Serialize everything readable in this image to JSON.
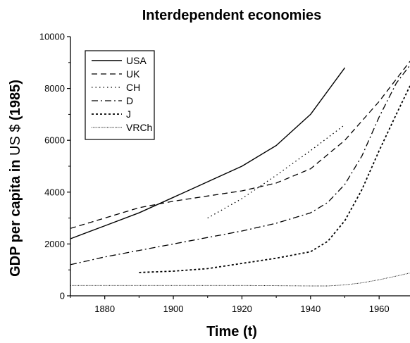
{
  "chart_data": {
    "type": "line",
    "title": "Interdependent economies",
    "xlabel": "Time (t)",
    "ylabel": "GDP per capita in US $ (1985)",
    "ylabel_parts": [
      "GDP per capita in ",
      "US $",
      " (1985)"
    ],
    "xlim": [
      1870,
      1969
    ],
    "ylim": [
      0,
      10000
    ],
    "xticks": [
      1880,
      1900,
      1920,
      1940,
      1960
    ],
    "yticks": [
      0,
      2000,
      4000,
      6000,
      8000,
      10000
    ],
    "grid": false,
    "legend_position": "top-left",
    "series": [
      {
        "name": "USA",
        "dash": "solid",
        "width": 1.4,
        "points": [
          [
            1870,
            2200
          ],
          [
            1880,
            2700
          ],
          [
            1890,
            3200
          ],
          [
            1900,
            3800
          ],
          [
            1910,
            4400
          ],
          [
            1920,
            5000
          ],
          [
            1930,
            5800
          ],
          [
            1940,
            7000
          ],
          [
            1950,
            8800
          ]
        ]
      },
      {
        "name": "UK",
        "dash": "dashed",
        "width": 1.3,
        "points": [
          [
            1870,
            2600
          ],
          [
            1880,
            3000
          ],
          [
            1890,
            3400
          ],
          [
            1900,
            3650
          ],
          [
            1910,
            3850
          ],
          [
            1920,
            4050
          ],
          [
            1930,
            4350
          ],
          [
            1940,
            4900
          ],
          [
            1950,
            6000
          ],
          [
            1960,
            7500
          ],
          [
            1969,
            9050
          ]
        ]
      },
      {
        "name": "CH",
        "dash": "dotted",
        "width": 1.3,
        "points": [
          [
            1910,
            3000
          ],
          [
            1920,
            3750
          ],
          [
            1930,
            4650
          ],
          [
            1940,
            5600
          ],
          [
            1950,
            6600
          ]
        ]
      },
      {
        "name": "D",
        "dash": "dashdot",
        "width": 1.3,
        "points": [
          [
            1870,
            1200
          ],
          [
            1880,
            1500
          ],
          [
            1890,
            1750
          ],
          [
            1900,
            2000
          ],
          [
            1910,
            2250
          ],
          [
            1920,
            2500
          ],
          [
            1930,
            2800
          ],
          [
            1940,
            3200
          ],
          [
            1945,
            3600
          ],
          [
            1950,
            4300
          ],
          [
            1955,
            5400
          ],
          [
            1960,
            6900
          ],
          [
            1965,
            8200
          ],
          [
            1969,
            8900
          ]
        ]
      },
      {
        "name": "J",
        "dash": "shortdash",
        "width": 1.8,
        "points": [
          [
            1890,
            900
          ],
          [
            1900,
            950
          ],
          [
            1910,
            1050
          ],
          [
            1920,
            1250
          ],
          [
            1930,
            1450
          ],
          [
            1940,
            1700
          ],
          [
            1945,
            2100
          ],
          [
            1950,
            2900
          ],
          [
            1955,
            4100
          ],
          [
            1960,
            5600
          ],
          [
            1965,
            7000
          ],
          [
            1969,
            8100
          ]
        ]
      },
      {
        "name": "VRCh",
        "dash": "fine",
        "width": 0.9,
        "points": [
          [
            1870,
            400
          ],
          [
            1880,
            400
          ],
          [
            1890,
            400
          ],
          [
            1900,
            400
          ],
          [
            1910,
            400
          ],
          [
            1920,
            400
          ],
          [
            1930,
            390
          ],
          [
            1940,
            380
          ],
          [
            1945,
            380
          ],
          [
            1950,
            420
          ],
          [
            1955,
            500
          ],
          [
            1960,
            620
          ],
          [
            1965,
            760
          ],
          [
            1969,
            880
          ]
        ]
      }
    ]
  }
}
